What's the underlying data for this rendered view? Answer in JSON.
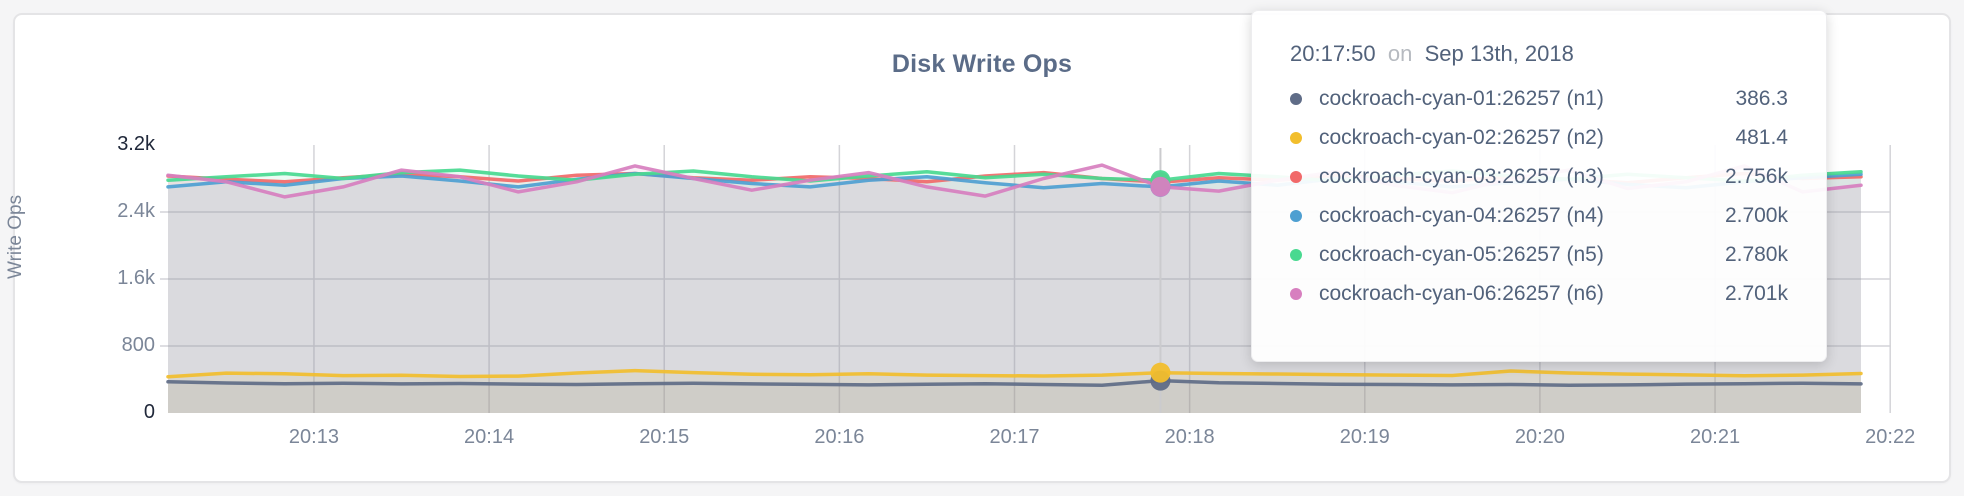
{
  "page": {
    "title": "Disk Write Ops"
  },
  "colors": {
    "page_bg": "#F5F5F6",
    "card_bg": "#FFFFFF",
    "card_border": "#E4E4E6",
    "title_text": "#5B6C88",
    "axis_text": "#7B8698",
    "axis_text_emphasis": "#20283A",
    "grid": "#D4D4D8",
    "crosshair": "#CBCBCE",
    "tooltip_text": "#52627B",
    "tooltip_on_word": "#B6BAC0"
  },
  "chart_data": {
    "type": "line",
    "title": "Disk Write Ops",
    "xlabel": "",
    "ylabel": "Write Ops",
    "ylim": [
      0,
      3200
    ],
    "grid": true,
    "legend_position": "tooltip-overlay",
    "y_ticks": [
      {
        "value": 0,
        "label": "0",
        "emphasis": true,
        "grid": false
      },
      {
        "value": 800,
        "label": "800",
        "emphasis": false,
        "grid": true
      },
      {
        "value": 1600,
        "label": "1.6k",
        "emphasis": false,
        "grid": true
      },
      {
        "value": 2400,
        "label": "2.4k",
        "emphasis": false,
        "grid": true
      },
      {
        "value": 3200,
        "label": "3.2k",
        "emphasis": true,
        "grid": false
      }
    ],
    "x_ticks": [
      "20:13",
      "20:14",
      "20:15",
      "20:16",
      "20:17",
      "20:18",
      "20:19",
      "20:20",
      "20:21",
      "20:22"
    ],
    "x_start_time": "20:12:10",
    "x_step_seconds": 20,
    "hover_index": 17,
    "hover_time": "20:17:50",
    "series": [
      {
        "name": "cockroach-cyan-01:26257 (n1)",
        "color": "#5F6C87",
        "values": [
          372,
          358,
          350,
          356,
          348,
          352,
          345,
          340,
          350,
          356,
          348,
          342,
          336,
          344,
          350,
          340,
          332,
          386.3,
          362,
          352,
          344,
          340,
          335,
          340,
          332,
          336,
          345,
          350,
          356,
          348
        ]
      },
      {
        "name": "cockroach-cyan-02:26257 (n2)",
        "color": "#F2BE2C",
        "values": [
          432,
          476,
          468,
          446,
          450,
          436,
          440,
          478,
          506,
          482,
          462,
          456,
          468,
          452,
          446,
          442,
          452,
          481.4,
          472,
          466,
          458,
          452,
          448,
          502,
          478,
          465,
          455,
          445,
          452,
          472
        ]
      },
      {
        "name": "cockroach-cyan-03:26257 (n3)",
        "color": "#F16969",
        "values": [
          2830,
          2790,
          2760,
          2810,
          2850,
          2820,
          2770,
          2840,
          2860,
          2810,
          2780,
          2820,
          2800,
          2760,
          2830,
          2870,
          2800,
          2756,
          2810,
          2780,
          2840,
          2800,
          2770,
          2820,
          2790,
          2750,
          2810,
          2860,
          2800,
          2820
        ]
      },
      {
        "name": "cockroach-cyan-04:26257 (n4)",
        "color": "#4E9FD1",
        "values": [
          2700,
          2760,
          2720,
          2800,
          2830,
          2770,
          2700,
          2790,
          2860,
          2800,
          2740,
          2700,
          2780,
          2820,
          2750,
          2690,
          2740,
          2700,
          2770,
          2720,
          2800,
          2760,
          2700,
          2750,
          2790,
          2730,
          2690,
          2760,
          2810,
          2850
        ]
      },
      {
        "name": "cockroach-cyan-05:26257 (n5)",
        "color": "#49D990",
        "values": [
          2780,
          2820,
          2860,
          2800,
          2870,
          2900,
          2830,
          2780,
          2850,
          2890,
          2820,
          2770,
          2830,
          2880,
          2810,
          2850,
          2800,
          2780,
          2860,
          2820,
          2770,
          2840,
          2890,
          2830,
          2790,
          2850,
          2810,
          2770,
          2840,
          2880
        ]
      },
      {
        "name": "cockroach-cyan-06:26257 (n6)",
        "color": "#D77FBF",
        "values": [
          2840,
          2760,
          2580,
          2700,
          2900,
          2820,
          2640,
          2760,
          2950,
          2800,
          2660,
          2780,
          2870,
          2700,
          2590,
          2800,
          2960,
          2701,
          2650,
          2780,
          2880,
          2720,
          2630,
          2800,
          2900,
          2680,
          2760,
          2950,
          2640,
          2720
        ]
      }
    ]
  },
  "tooltip": {
    "time": "20:17:50",
    "connector": "on",
    "date": "Sep 13th, 2018",
    "rows": [
      {
        "label": "cockroach-cyan-01:26257 (n1)",
        "value": "386.3",
        "color": "#5F6C87"
      },
      {
        "label": "cockroach-cyan-02:26257 (n2)",
        "value": "481.4",
        "color": "#F2BE2C"
      },
      {
        "label": "cockroach-cyan-03:26257 (n3)",
        "value": "2.756k",
        "color": "#F16969"
      },
      {
        "label": "cockroach-cyan-04:26257 (n4)",
        "value": "2.700k",
        "color": "#4E9FD1"
      },
      {
        "label": "cockroach-cyan-05:26257 (n5)",
        "value": "2.780k",
        "color": "#49D990"
      },
      {
        "label": "cockroach-cyan-06:26257 (n6)",
        "value": "2.701k",
        "color": "#D77FBF"
      }
    ]
  }
}
